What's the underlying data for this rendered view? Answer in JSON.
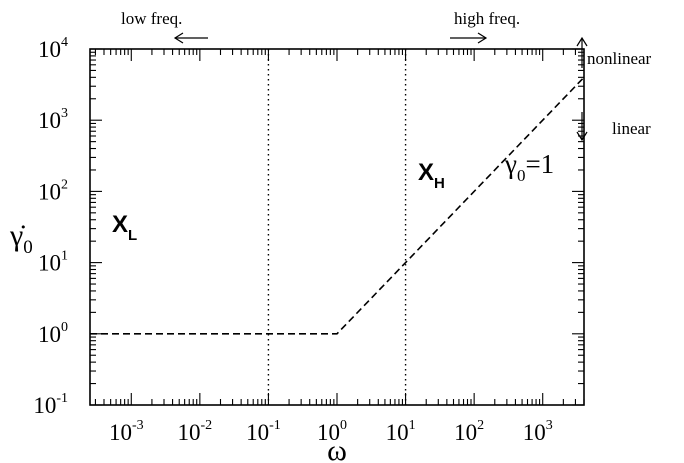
{
  "chart_data": {
    "type": "line",
    "x_scale": "log",
    "y_scale": "log",
    "xlim": [
      0.00025,
      4000
    ],
    "ylim": [
      0.1,
      10000
    ],
    "xlabel": "ω",
    "ylabel": {
      "base": "γ̇",
      "sub": "0"
    },
    "x_ticks": [
      {
        "x": 0.001,
        "base": "10",
        "exp": "-3"
      },
      {
        "x": 0.01,
        "base": "10",
        "exp": "-2"
      },
      {
        "x": 0.1,
        "base": "10",
        "exp": "-1"
      },
      {
        "x": 1,
        "base": "10",
        "exp": "0"
      },
      {
        "x": 10,
        "base": "10",
        "exp": "1"
      },
      {
        "x": 100,
        "base": "10",
        "exp": "2"
      },
      {
        "x": 1000,
        "base": "10",
        "exp": "3"
      }
    ],
    "y_ticks": [
      {
        "y": 0.1,
        "base": "10",
        "exp": "-1"
      },
      {
        "y": 1,
        "base": "10",
        "exp": "0"
      },
      {
        "y": 10,
        "base": "10",
        "exp": "1"
      },
      {
        "y": 100,
        "base": "10",
        "exp": "2"
      },
      {
        "y": 1000,
        "base": "10",
        "exp": "3"
      },
      {
        "y": 10000,
        "base": "10",
        "exp": "4"
      }
    ],
    "series": [
      {
        "name": "",
        "style": "dashed",
        "points": [
          [
            0.00025,
            1
          ],
          [
            1,
            1
          ],
          [
            4000,
            4000
          ]
        ]
      }
    ],
    "vertical_lines": [
      {
        "x": 0.1,
        "style": "dotted"
      },
      {
        "x": 10,
        "style": "dotted"
      }
    ],
    "annotations": {
      "gamma_label": {
        "base": "γ",
        "sub": "0",
        "rest": "=1"
      },
      "region_low": {
        "base": "X",
        "sub": "L"
      },
      "region_high": {
        "base": "X",
        "sub": "H"
      },
      "low_freq": "low freq.",
      "high_freq": "high freq.",
      "nonlinear": "nonlinear",
      "linear": "linear"
    },
    "grid": false,
    "legend": "none"
  }
}
